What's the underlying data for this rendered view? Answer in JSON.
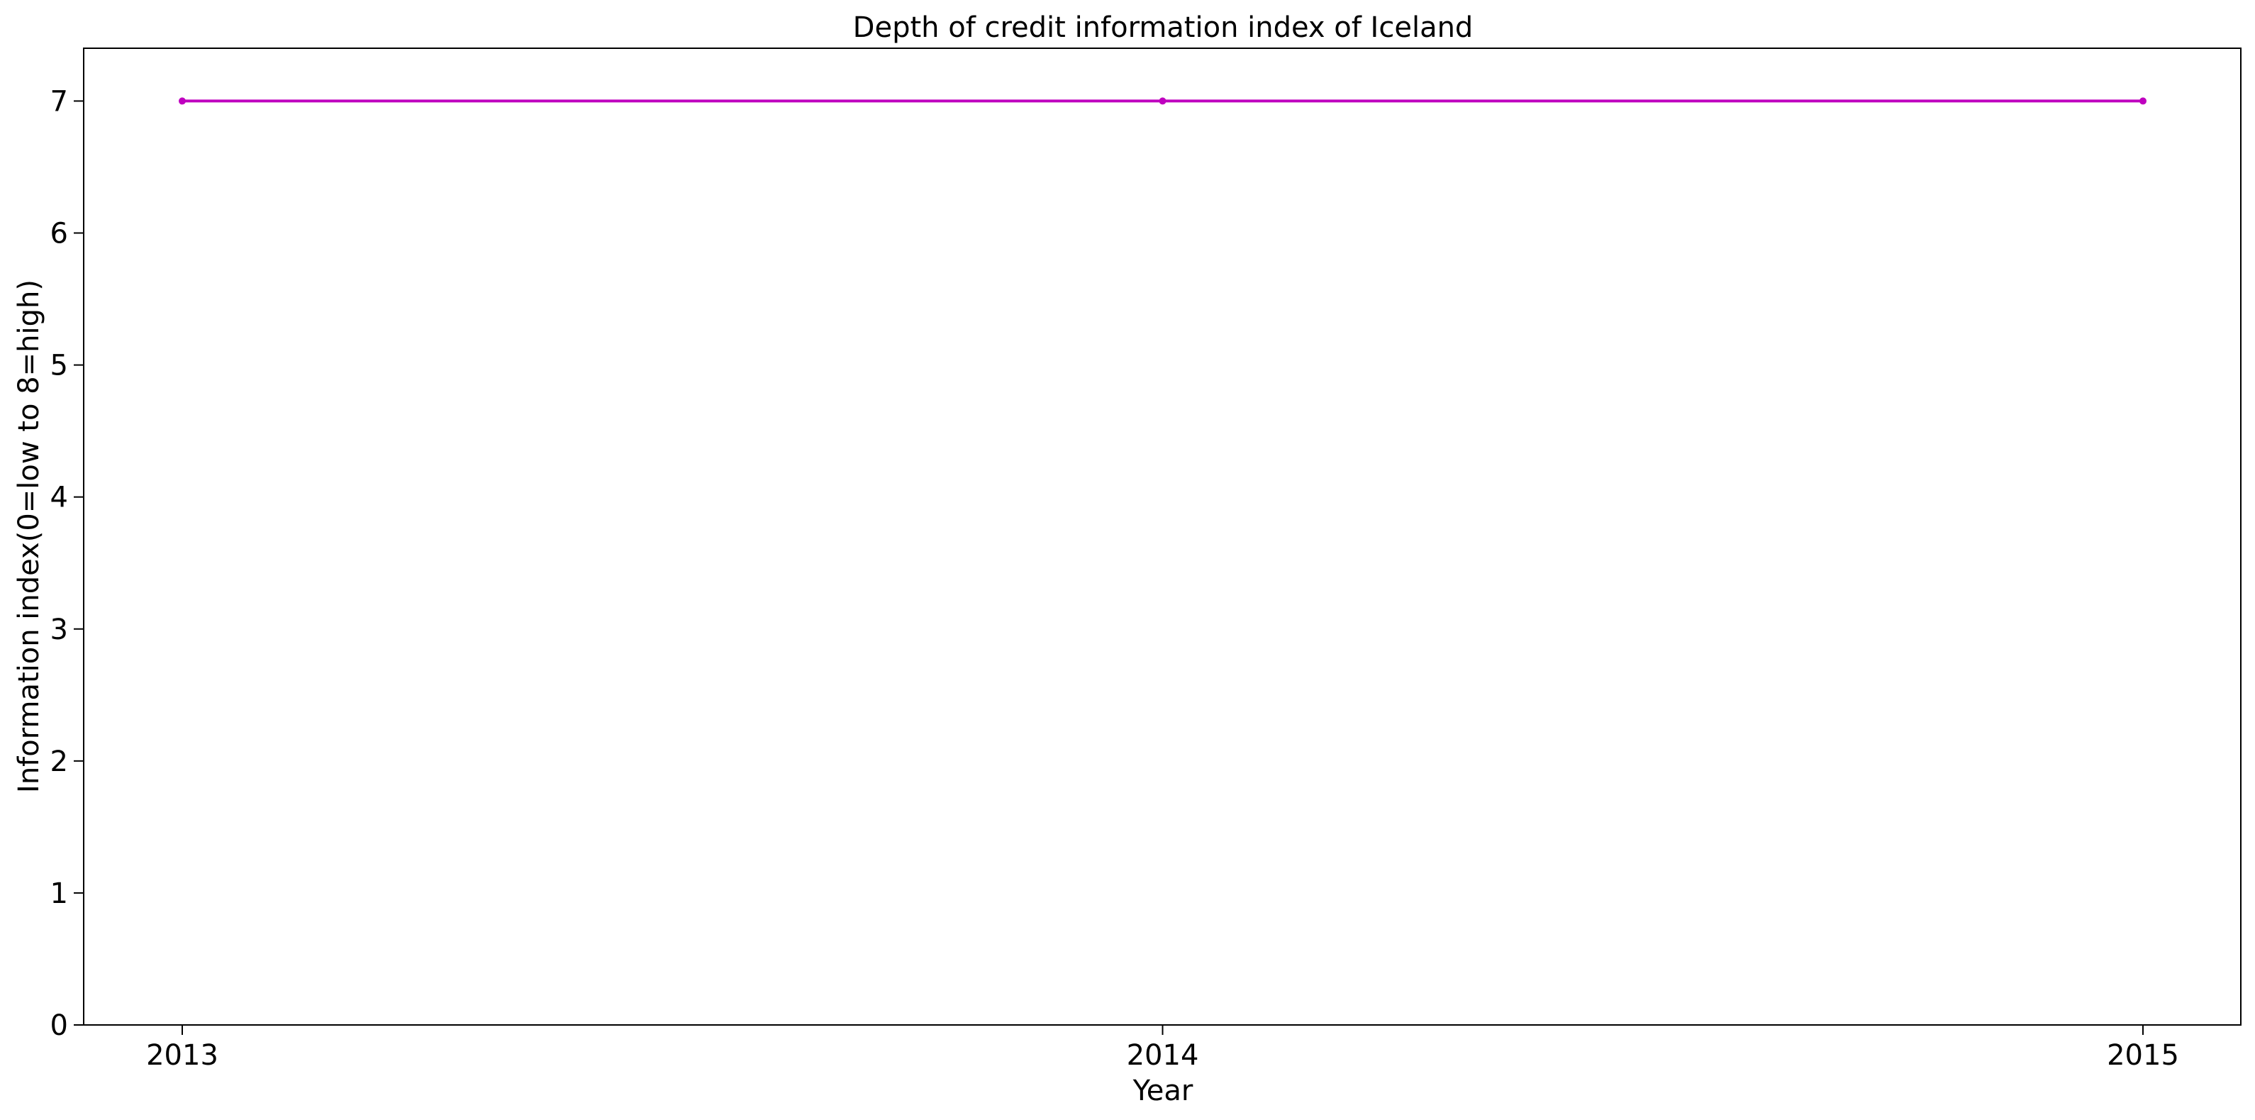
{
  "chart_data": {
    "type": "line",
    "title": "Depth of credit information index of Iceland",
    "xlabel": "Year",
    "ylabel": "Information index(0=low to 8=high)",
    "x": [
      "2013",
      "2014",
      "2015"
    ],
    "series": [
      {
        "values": [
          7,
          7,
          7
        ],
        "color": "#bf00bf"
      }
    ],
    "ylim": [
      0,
      7.4
    ],
    "yticks": [
      0,
      1,
      2,
      3,
      4,
      5,
      6,
      7
    ],
    "grid": false,
    "legend": "none"
  }
}
